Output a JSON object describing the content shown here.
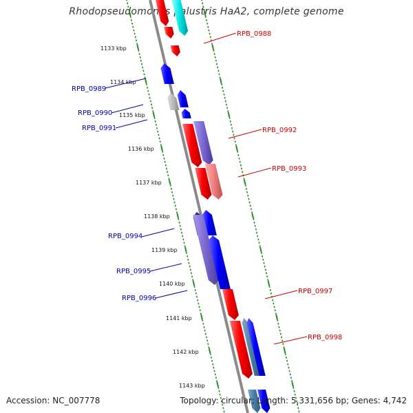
{
  "title": "Rhodopseudomonas palustris HaA2, complete genome",
  "accession": "Accession: NC_007778",
  "summary": "Topology: circular; Length: 5,331,656 bp; Genes: 4,742",
  "colors": {
    "backbone": "#808080",
    "tick": "#228b22",
    "forward_gene": "#ff0000",
    "forward_gene_light": "#f08080",
    "reverse_gene": "#0000ff",
    "reverse_gene_light": "#8470d8",
    "rna": "#00e5e5",
    "pseudo": "#b0b0b0",
    "forward_label": "#cc0000",
    "reverse_label": "#0000aa"
  },
  "scale_labels": [
    "1133 kbp",
    "1134 kbp",
    "1135 kbp",
    "1136 kbp",
    "1137 kbp",
    "1138 kbp",
    "1139 kbp",
    "1140 kbp",
    "1141 kbp",
    "1142 kbp",
    "1143 kbp"
  ],
  "forward_gene_labels": [
    "RPB_0988",
    "RPB_0992",
    "RPB_0993",
    "RPB_0997",
    "RPB_0998"
  ],
  "reverse_gene_labels": [
    "RPB_0989",
    "RPB_0990",
    "RPB_0991",
    "RPB_0994",
    "RPB_0995",
    "RPB_0996"
  ]
}
